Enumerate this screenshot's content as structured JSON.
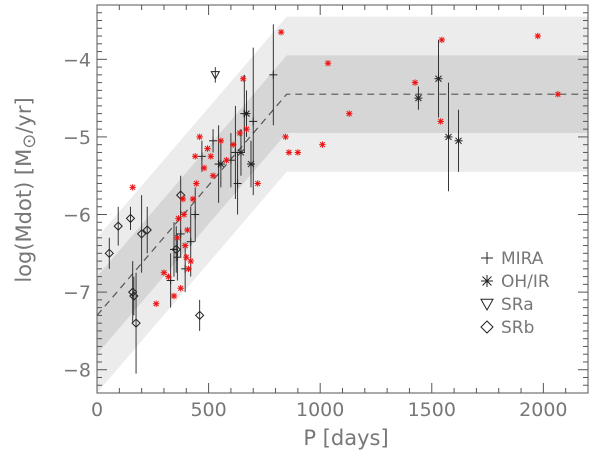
{
  "chart_data": {
    "type": "scatter",
    "xlabel": "P [days]",
    "ylabel_parts": [
      "log(Mdot) [M",
      "/yr]"
    ],
    "xlim": [
      0,
      2200
    ],
    "ylim": [
      -8.3,
      -3.3
    ],
    "xticks": [
      0,
      500,
      1000,
      1500,
      2000
    ],
    "yticks": [
      -8,
      -7,
      -6,
      -5,
      -4
    ],
    "xtick_labels": [
      "0",
      "500",
      "1000",
      "1500",
      "2000"
    ],
    "ytick_labels": [
      "−8",
      "−7",
      "−6",
      "−5",
      "−4"
    ],
    "grid": false,
    "legend_position": "right",
    "colors": {
      "outer_band": "#ececec",
      "inner_band": "#d6d6d6",
      "fit_line": "#555555",
      "symbols": "#222222",
      "red_stars": "#ee1111",
      "axes": "#555555",
      "text": "#777777"
    },
    "fit": {
      "breakpoint_x": 850,
      "start": [
        0,
        -7.3
      ],
      "plateau_y": -4.45,
      "inner_halfwidth": 0.5,
      "outer_halfwidth": 1.0
    },
    "legend": [
      {
        "symbol": "plus",
        "label": "MIRA"
      },
      {
        "symbol": "asterisk",
        "label": "OH/IR"
      },
      {
        "symbol": "triangle",
        "label": "SRa"
      },
      {
        "symbol": "diamond",
        "label": "SRb"
      }
    ],
    "series": [
      {
        "symbol": "plus",
        "points": [
          {
            "x": 330,
            "y": -6.85,
            "err": 0.35
          },
          {
            "x": 345,
            "y": -6.45,
            "err": 0.35
          },
          {
            "x": 360,
            "y": -6.55,
            "err": 0.3
          },
          {
            "x": 375,
            "y": -6.25,
            "err": 0.3
          },
          {
            "x": 395,
            "y": -6.7,
            "err": 0.3
          },
          {
            "x": 420,
            "y": -6.35,
            "err": 0.45
          },
          {
            "x": 440,
            "y": -6.0,
            "err": 0.35
          },
          {
            "x": 470,
            "y": -5.25,
            "err": 0.2
          },
          {
            "x": 520,
            "y": -5.05,
            "err": 0.15
          },
          {
            "x": 545,
            "y": -5.35,
            "err": 0.5
          },
          {
            "x": 600,
            "y": -5.3,
            "err": 0.35
          },
          {
            "x": 620,
            "y": -5.2,
            "err": 0.6
          },
          {
            "x": 630,
            "y": -5.6,
            "err": 0.4
          },
          {
            "x": 660,
            "y": -4.7,
            "err": 0.5
          },
          {
            "x": 700,
            "y": -4.8,
            "err": 0.95
          },
          {
            "x": 790,
            "y": -4.2,
            "err": 0.65
          }
        ]
      },
      {
        "symbol": "asterisk",
        "points": [
          {
            "x": 555,
            "y": -5.35,
            "err": 0.3
          },
          {
            "x": 645,
            "y": -5.2,
            "err": 0.3
          },
          {
            "x": 670,
            "y": -4.7,
            "err": 0.3
          },
          {
            "x": 690,
            "y": -5.35,
            "err": 0.3
          },
          {
            "x": 1440,
            "y": -4.5,
            "err": 0.15
          },
          {
            "x": 1530,
            "y": -4.25,
            "err": 0.5
          },
          {
            "x": 1575,
            "y": -5.0,
            "err": 0.7
          },
          {
            "x": 1620,
            "y": -5.05,
            "err": 0.4
          }
        ]
      },
      {
        "symbol": "triangle",
        "points": [
          {
            "x": 530,
            "y": -4.2,
            "err": 0.1
          }
        ]
      },
      {
        "symbol": "diamond",
        "points": [
          {
            "x": 55,
            "y": -6.5,
            "err": 0.2
          },
          {
            "x": 95,
            "y": -6.15,
            "err": 0.25
          },
          {
            "x": 150,
            "y": -6.05,
            "err": 0.15
          },
          {
            "x": 160,
            "y": -7.0,
            "err": 0.4
          },
          {
            "x": 165,
            "y": -7.05,
            "err": 0.25
          },
          {
            "x": 175,
            "y": -7.4,
            "err": 0.65
          },
          {
            "x": 200,
            "y": -6.25,
            "err": 0.5
          },
          {
            "x": 225,
            "y": -6.2,
            "err": 0.3
          },
          {
            "x": 355,
            "y": -6.45,
            "err": 0.3
          },
          {
            "x": 375,
            "y": -5.75,
            "err": 0.25
          },
          {
            "x": 460,
            "y": -7.3,
            "err": 0.2
          }
        ]
      },
      {
        "symbol": "red_star",
        "points": [
          {
            "x": 160,
            "y": -5.65
          },
          {
            "x": 265,
            "y": -7.15
          },
          {
            "x": 300,
            "y": -6.75
          },
          {
            "x": 320,
            "y": -6.8
          },
          {
            "x": 345,
            "y": -7.05
          },
          {
            "x": 360,
            "y": -6.3
          },
          {
            "x": 365,
            "y": -6.05
          },
          {
            "x": 375,
            "y": -6.95
          },
          {
            "x": 385,
            "y": -5.8
          },
          {
            "x": 390,
            "y": -6.0
          },
          {
            "x": 395,
            "y": -6.4
          },
          {
            "x": 400,
            "y": -6.55
          },
          {
            "x": 405,
            "y": -6.2
          },
          {
            "x": 410,
            "y": -6.7
          },
          {
            "x": 420,
            "y": -6.6
          },
          {
            "x": 430,
            "y": -5.8
          },
          {
            "x": 440,
            "y": -5.25
          },
          {
            "x": 445,
            "y": -5.6
          },
          {
            "x": 460,
            "y": -5.0
          },
          {
            "x": 480,
            "y": -5.4
          },
          {
            "x": 495,
            "y": -5.15
          },
          {
            "x": 510,
            "y": -5.25
          },
          {
            "x": 520,
            "y": -5.5
          },
          {
            "x": 555,
            "y": -5.05
          },
          {
            "x": 580,
            "y": -5.3
          },
          {
            "x": 610,
            "y": -5.1
          },
          {
            "x": 640,
            "y": -4.95
          },
          {
            "x": 655,
            "y": -4.25
          },
          {
            "x": 670,
            "y": -4.9
          },
          {
            "x": 720,
            "y": -5.6
          },
          {
            "x": 825,
            "y": -3.65
          },
          {
            "x": 845,
            "y": -5.0
          },
          {
            "x": 860,
            "y": -5.2
          },
          {
            "x": 900,
            "y": -5.2
          },
          {
            "x": 1010,
            "y": -5.1
          },
          {
            "x": 1035,
            "y": -4.05
          },
          {
            "x": 1130,
            "y": -4.7
          },
          {
            "x": 1425,
            "y": -4.3
          },
          {
            "x": 1545,
            "y": -3.75
          },
          {
            "x": 1540,
            "y": -4.8
          },
          {
            "x": 1975,
            "y": -3.7
          },
          {
            "x": 2065,
            "y": -4.45
          }
        ]
      }
    ]
  }
}
